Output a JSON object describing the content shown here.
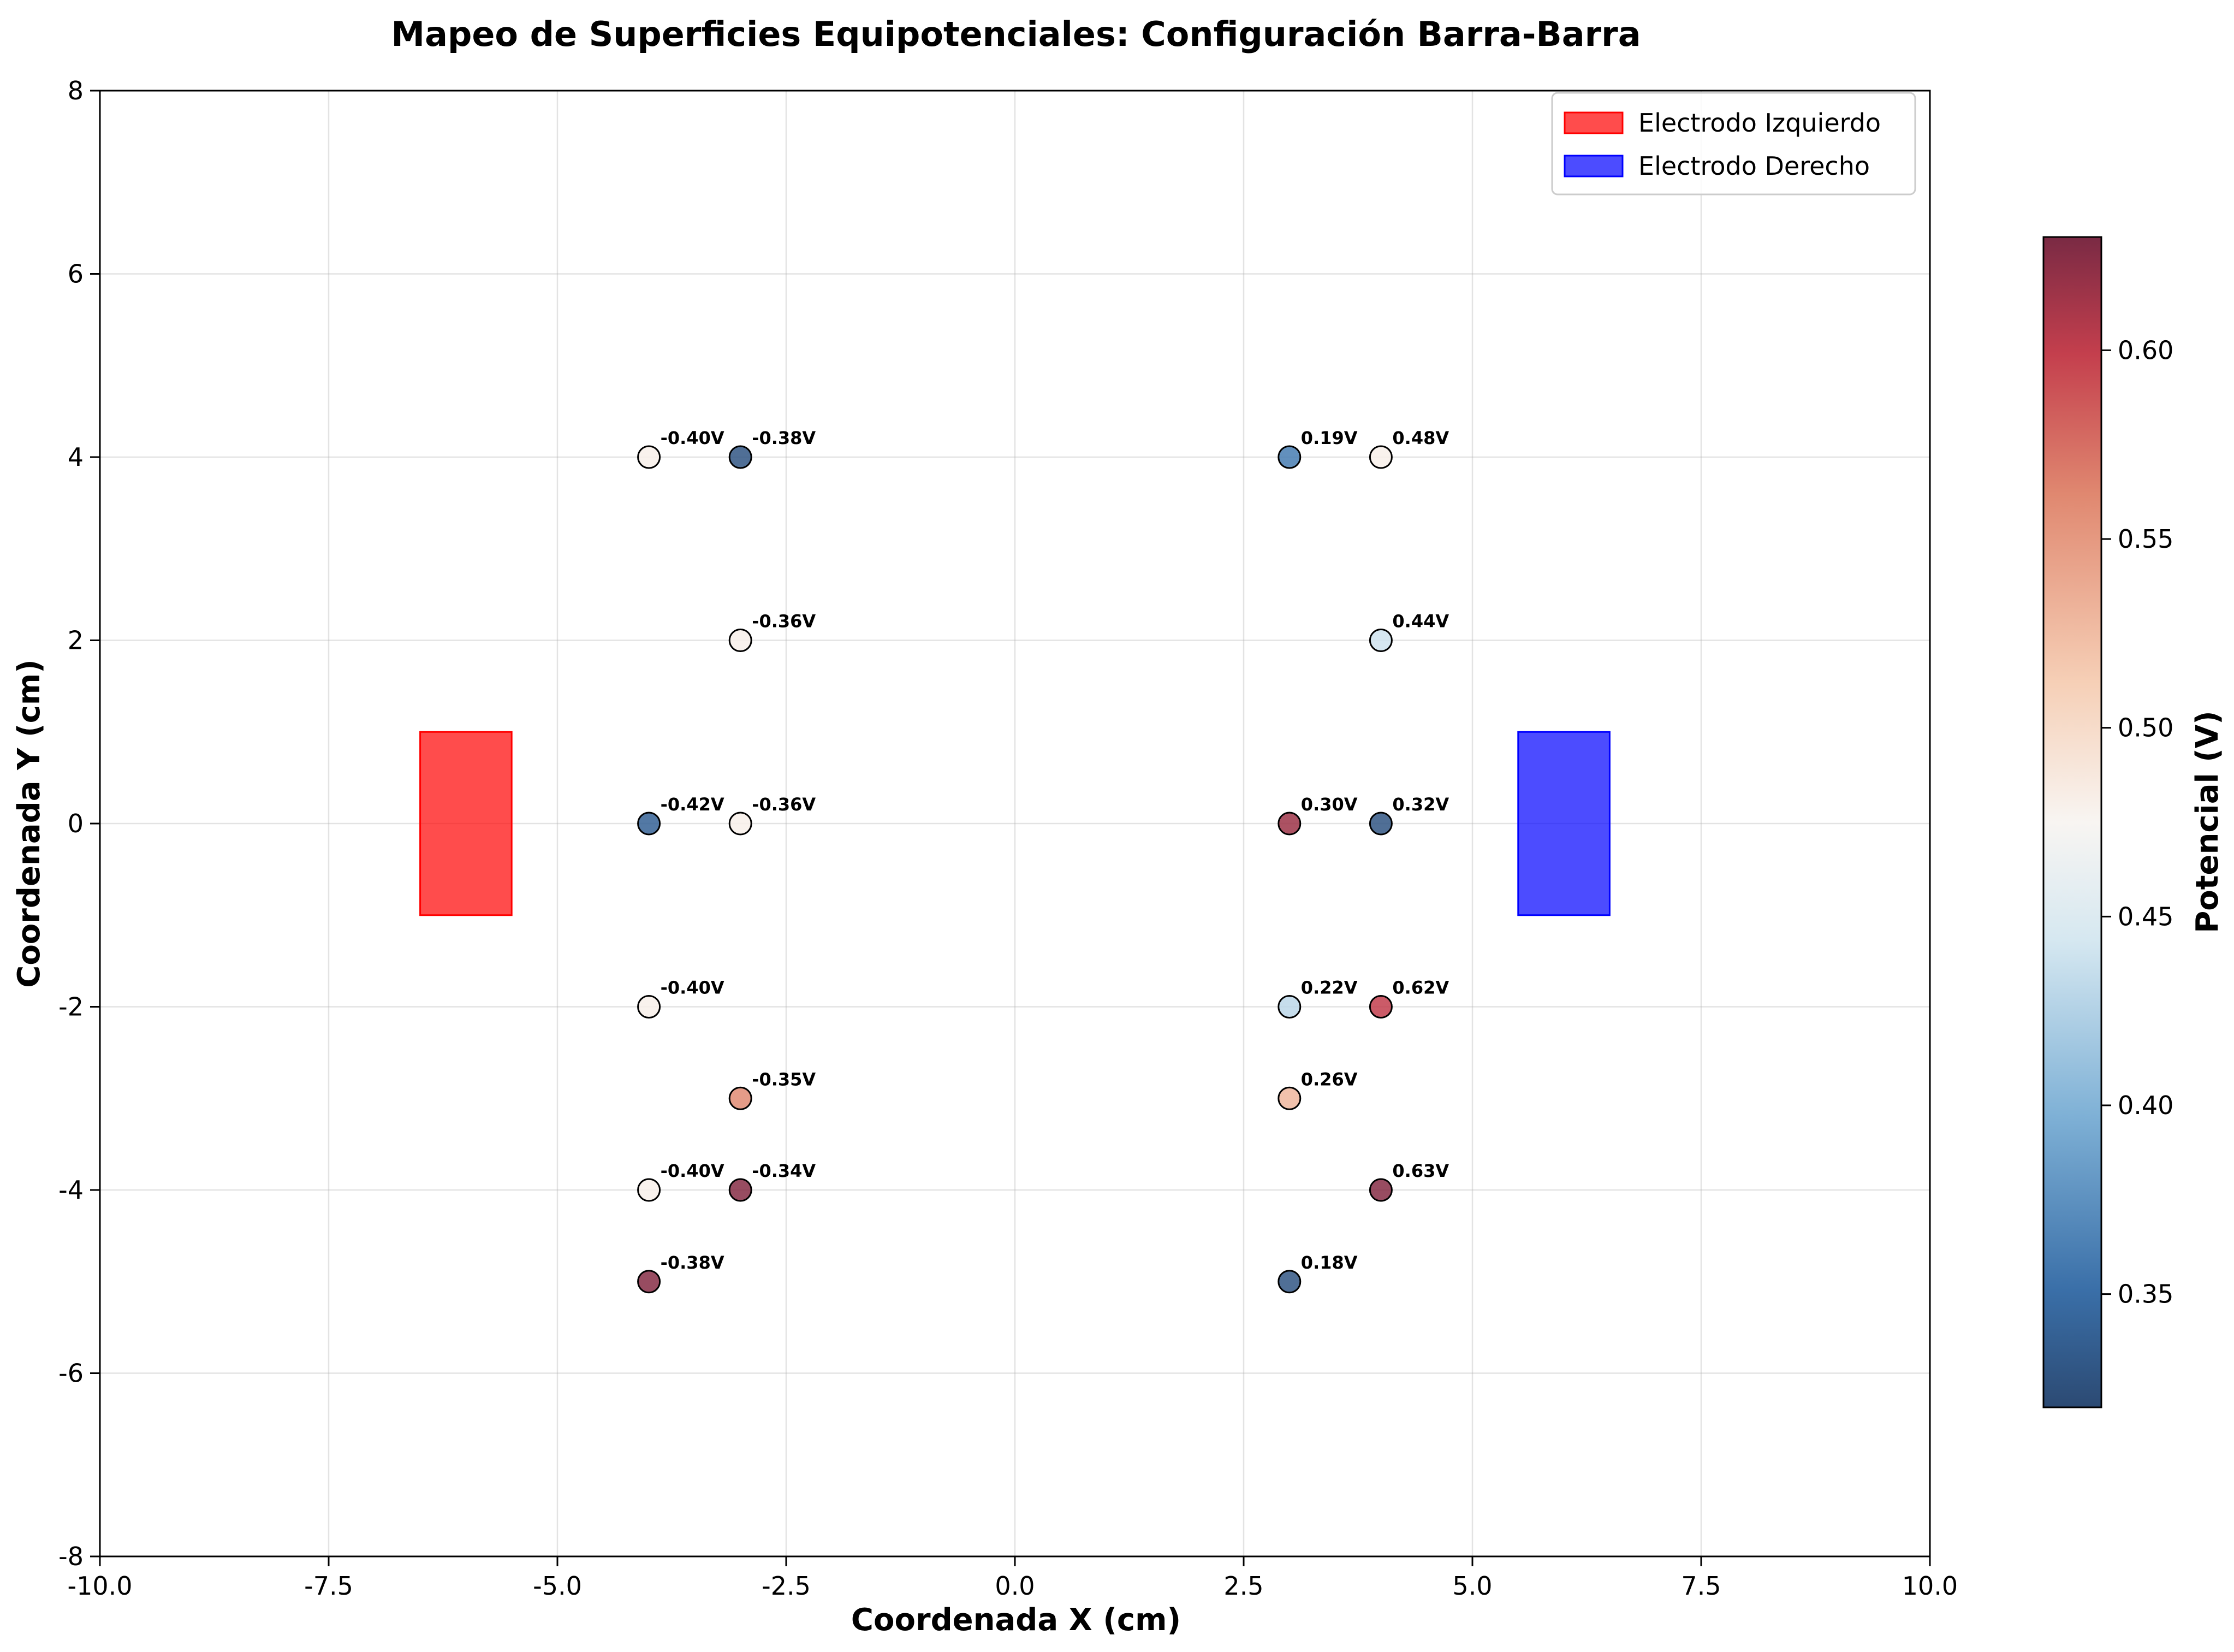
{
  "chart_data": {
    "type": "scatter",
    "title": "Mapeo de Superficies Equipotenciales: Configuración Barra-Barra",
    "xlabel": "Coordenada X (cm)",
    "ylabel": "Coordenada Y (cm)",
    "xlim": [
      -10,
      10
    ],
    "ylim": [
      -8,
      8
    ],
    "x_ticks": [
      -10,
      -7.5,
      -5,
      -2.5,
      0,
      2.5,
      5,
      7.5,
      10
    ],
    "x_tick_labels": [
      "-10.0",
      "-7.5",
      "-5.0",
      "-2.5",
      "0.0",
      "2.5",
      "5.0",
      "7.5",
      "10.0"
    ],
    "y_ticks": [
      -8,
      -6,
      -4,
      -2,
      0,
      2,
      4,
      6,
      8
    ],
    "y_tick_labels": [
      "-8",
      "-6",
      "-4",
      "-2",
      "0",
      "2",
      "4",
      "6",
      "8"
    ],
    "grid": true,
    "legend_position": "top-right",
    "electrodes": [
      {
        "name": "Electrodo Izquierdo",
        "color": "#ff0000",
        "x": [
          -6.5,
          -5.5
        ],
        "y": [
          -1,
          1
        ]
      },
      {
        "name": "Electrodo Derecho",
        "color": "#0000ff",
        "x": [
          5.5,
          6.5
        ],
        "y": [
          -1,
          1
        ]
      }
    ],
    "points": [
      {
        "x": -4,
        "y": 4,
        "label": "-0.40V",
        "color_value": 0.48
      },
      {
        "x": -3,
        "y": 4,
        "label": "-0.38V",
        "color_value": 0.33
      },
      {
        "x": -3,
        "y": 2,
        "label": "-0.36V",
        "color_value": 0.48
      },
      {
        "x": -4,
        "y": 0,
        "label": "-0.42V",
        "color_value": 0.34
      },
      {
        "x": -3,
        "y": 0,
        "label": "-0.36V",
        "color_value": 0.48
      },
      {
        "x": -4,
        "y": -2,
        "label": "-0.40V",
        "color_value": 0.48
      },
      {
        "x": -3,
        "y": -3,
        "label": "-0.35V",
        "color_value": 0.56
      },
      {
        "x": -4,
        "y": -4,
        "label": "-0.40V",
        "color_value": 0.48
      },
      {
        "x": -3,
        "y": -4,
        "label": "-0.34V",
        "color_value": 0.625
      },
      {
        "x": -4,
        "y": -5,
        "label": "-0.38V",
        "color_value": 0.625
      },
      {
        "x": 3,
        "y": 4,
        "label": "0.19V",
        "color_value": 0.36
      },
      {
        "x": 4,
        "y": 4,
        "label": "0.48V",
        "color_value": 0.48
      },
      {
        "x": 4,
        "y": 2,
        "label": "0.44V",
        "color_value": 0.44
      },
      {
        "x": 3,
        "y": 0,
        "label": "0.30V",
        "color_value": 0.615
      },
      {
        "x": 4,
        "y": 0,
        "label": "0.32V",
        "color_value": 0.33
      },
      {
        "x": 3,
        "y": -2,
        "label": "0.22V",
        "color_value": 0.43
      },
      {
        "x": 4,
        "y": -2,
        "label": "0.62V",
        "color_value": 0.6
      },
      {
        "x": 3,
        "y": -3,
        "label": "0.26V",
        "color_value": 0.53
      },
      {
        "x": 4,
        "y": -4,
        "label": "0.63V",
        "color_value": 0.625
      },
      {
        "x": 3,
        "y": -5,
        "label": "0.18V",
        "color_value": 0.33
      }
    ],
    "colorbar": {
      "label": "Potencial (V)",
      "colormap": "RdBu_r",
      "range": [
        0.32,
        0.63
      ],
      "ticks": [
        0.35,
        0.4,
        0.45,
        0.5,
        0.55,
        0.6
      ],
      "tick_labels": [
        "0.35",
        "0.40",
        "0.45",
        "0.50",
        "0.55",
        "0.60"
      ]
    }
  }
}
